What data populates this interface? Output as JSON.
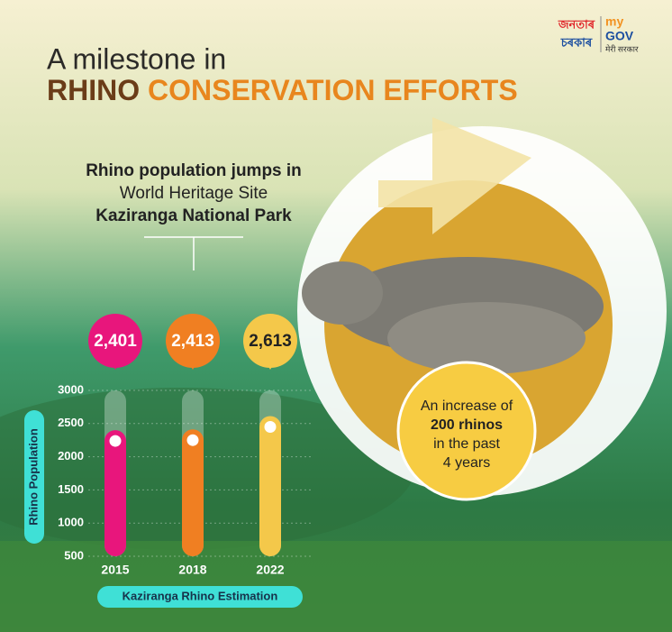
{
  "logo": {
    "left": [
      "জনতাৰ",
      "চৰকাৰ"
    ],
    "right": [
      "my",
      "GOV",
      "मेरी सरकार"
    ]
  },
  "chart_data": {
    "type": "bar",
    "title": "A milestone in",
    "title_emphasis": [
      "RHINO",
      "CONSERVATION EFFORTS"
    ],
    "subtitle": [
      "Rhino population jumps in",
      "World Heritage Site",
      "Kaziranga National Park"
    ],
    "annotation": [
      "An increase of",
      "200 rhinos",
      "in the past",
      "4 years"
    ],
    "y_label": "Rhino Population",
    "x_label": "Kaziranga Rhino Estimation",
    "categories": [
      "2015",
      "2018",
      "2022"
    ],
    "values": [
      2401,
      2413,
      2613
    ],
    "value_labels": [
      "2,401",
      "2,413",
      "2,613"
    ],
    "colors": [
      "#e8167c",
      "#f07f22",
      "#f4c84a"
    ],
    "ylim": [
      500,
      3000
    ],
    "yticks": [
      500,
      1000,
      1500,
      2000,
      2500,
      3000
    ],
    "grid": true
  }
}
